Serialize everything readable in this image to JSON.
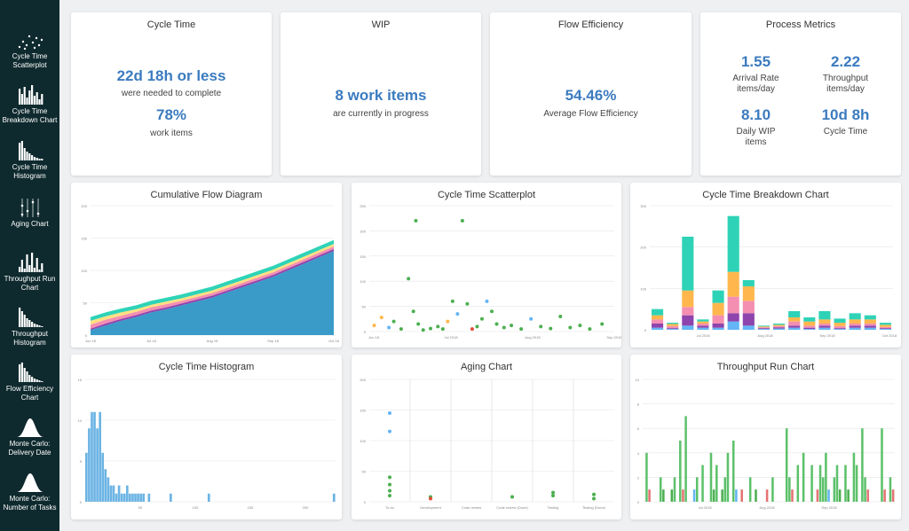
{
  "sidebar": {
    "items": [
      {
        "label": "Cycle Time\nScatterplot",
        "icon": "scatterplot-icon"
      },
      {
        "label": "Cycle Time\nBreakdown Chart",
        "icon": "breakdown-chart-icon"
      },
      {
        "label": "Cycle Time\nHistogram",
        "icon": "histogram-icon"
      },
      {
        "label": "Aging Chart",
        "icon": "aging-chart-icon"
      },
      {
        "label": "Throughput Run\nChart",
        "icon": "run-chart-icon"
      },
      {
        "label": "Throughput\nHistogram",
        "icon": "throughput-histogram-icon"
      },
      {
        "label": "Flow Efficiency\nChart",
        "icon": "flow-efficiency-icon"
      },
      {
        "label": "Monte Carlo:\nDelivery Date",
        "icon": "bell-curve-icon"
      },
      {
        "label": "Monte Carlo:\nNumber of Tasks",
        "icon": "bell-curve-icon"
      }
    ]
  },
  "cycle_time": {
    "title": "Cycle Time",
    "value": "22d 18h or less",
    "desc": "were needed to complete",
    "percent": "78%",
    "unit": "work items"
  },
  "wip": {
    "title": "WIP",
    "value": "8 work items",
    "desc": "are currently in progress"
  },
  "flow_efficiency": {
    "title": "Flow Efficiency",
    "value": "54.46%",
    "desc": "Average Flow Efficiency"
  },
  "process_metrics": {
    "title": "Process Metrics",
    "arrival_rate": {
      "value": "1.55",
      "label": "Arrival Rate\nitems/day"
    },
    "throughput": {
      "value": "2.22",
      "label": "Throughput\nitems/day"
    },
    "daily_wip": {
      "value": "8.10",
      "label": "Daily WIP\nitems"
    },
    "cycle_time": {
      "value": "10d 8h",
      "label": "Cycle Time"
    }
  },
  "panels": {
    "cfd": "Cumulative Flow Diagram",
    "scatter": "Cycle Time Scatterplot",
    "breakdown": "Cycle Time Breakdown Chart",
    "histogram": "Cycle Time Histogram",
    "aging": "Aging Chart",
    "runchart": "Throughput Run Chart"
  },
  "colors": {
    "blue": "#3b7bbf",
    "teal": "#2ed3b7",
    "orange": "#ffb74d",
    "pink": "#f48fb1",
    "purple": "#8e44ad",
    "lightblue": "#64b5f6",
    "green": "#4caf50",
    "red": "#e74c3c",
    "cfd_blue": "#3a9bc9"
  },
  "chart_data": [
    {
      "type": "area",
      "title": "Cumulative Flow Diagram",
      "x_ticks": [
        "Jun 18",
        "Jul 18",
        "Aug 18",
        "Sep 18",
        "Oct 18"
      ],
      "y_ticks": [
        "0",
        "50",
        "100",
        "150",
        "200"
      ],
      "ylim": [
        0,
        200
      ],
      "x": [
        0,
        1,
        2,
        3,
        4,
        5,
        6,
        7,
        8,
        9,
        10,
        11,
        12,
        13,
        14,
        15,
        16
      ],
      "series": [
        {
          "name": "",
          "color": "#3a9bc9",
          "values": [
            8,
            15,
            22,
            28,
            35,
            40,
            46,
            52,
            58,
            66,
            74,
            82,
            90,
            100,
            110,
            120,
            130
          ]
        },
        {
          "name": "",
          "color": "#8e44ad",
          "values": [
            2,
            3,
            3,
            3,
            3,
            3,
            3,
            3,
            3,
            3,
            3,
            3,
            3,
            3,
            3,
            3,
            3
          ]
        },
        {
          "name": "",
          "color": "#f48fb1",
          "values": [
            6,
            6,
            5,
            5,
            5,
            5,
            4,
            4,
            4,
            4,
            4,
            4,
            4,
            4,
            4,
            4,
            4
          ]
        },
        {
          "name": "",
          "color": "#ffe082",
          "values": [
            6,
            5,
            5,
            4,
            4,
            4,
            4,
            4,
            4,
            4,
            4,
            4,
            4,
            4,
            4,
            4,
            4
          ]
        },
        {
          "name": "",
          "color": "#2ed3b7",
          "values": [
            6,
            6,
            6,
            6,
            6,
            6,
            6,
            6,
            6,
            6,
            6,
            6,
            6,
            6,
            6,
            6,
            6
          ]
        }
      ]
    },
    {
      "type": "scatter",
      "title": "Cycle Time Scatterplot",
      "x_ticks": [
        "Jun 18",
        "Jul 2018",
        "Aug 2018",
        "Sep 2018"
      ],
      "y_ticks": [
        "0",
        "50",
        "100",
        "150",
        "200",
        "250"
      ],
      "ylim": [
        0,
        250
      ],
      "points": [
        {
          "x": 2,
          "y": 12,
          "c": "#ffb74d"
        },
        {
          "x": 5,
          "y": 28,
          "c": "#ffb74d"
        },
        {
          "x": 8,
          "y": 8,
          "c": "#64b5f6"
        },
        {
          "x": 10,
          "y": 20,
          "c": "#4caf50"
        },
        {
          "x": 13,
          "y": 5,
          "c": "#4caf50"
        },
        {
          "x": 16,
          "y": 105,
          "c": "#4caf50"
        },
        {
          "x": 18,
          "y": 40,
          "c": "#4caf50"
        },
        {
          "x": 19,
          "y": 220,
          "c": "#4caf50"
        },
        {
          "x": 20,
          "y": 15,
          "c": "#4caf50"
        },
        {
          "x": 22,
          "y": 3,
          "c": "#4caf50"
        },
        {
          "x": 25,
          "y": 6,
          "c": "#4caf50"
        },
        {
          "x": 28,
          "y": 10,
          "c": "#4caf50"
        },
        {
          "x": 30,
          "y": 5,
          "c": "#4caf50"
        },
        {
          "x": 32,
          "y": 20,
          "c": "#ffb74d"
        },
        {
          "x": 34,
          "y": 60,
          "c": "#4caf50"
        },
        {
          "x": 36,
          "y": 35,
          "c": "#64b5f6"
        },
        {
          "x": 38,
          "y": 220,
          "c": "#4caf50"
        },
        {
          "x": 40,
          "y": 55,
          "c": "#4caf50"
        },
        {
          "x": 42,
          "y": 5,
          "c": "#e74c3c"
        },
        {
          "x": 44,
          "y": 10,
          "c": "#4caf50"
        },
        {
          "x": 46,
          "y": 25,
          "c": "#4caf50"
        },
        {
          "x": 48,
          "y": 60,
          "c": "#64b5f6"
        },
        {
          "x": 50,
          "y": 40,
          "c": "#4caf50"
        },
        {
          "x": 52,
          "y": 15,
          "c": "#4caf50"
        },
        {
          "x": 55,
          "y": 8,
          "c": "#4caf50"
        },
        {
          "x": 58,
          "y": 12,
          "c": "#4caf50"
        },
        {
          "x": 62,
          "y": 5,
          "c": "#4caf50"
        },
        {
          "x": 66,
          "y": 25,
          "c": "#64b5f6"
        },
        {
          "x": 70,
          "y": 10,
          "c": "#4caf50"
        },
        {
          "x": 74,
          "y": 6,
          "c": "#4caf50"
        },
        {
          "x": 78,
          "y": 30,
          "c": "#4caf50"
        },
        {
          "x": 82,
          "y": 8,
          "c": "#4caf50"
        },
        {
          "x": 86,
          "y": 12,
          "c": "#4caf50"
        },
        {
          "x": 90,
          "y": 5,
          "c": "#4caf50"
        },
        {
          "x": 95,
          "y": 15,
          "c": "#4caf50"
        }
      ]
    },
    {
      "type": "bar",
      "title": "Cycle Time Breakdown Chart",
      "y_ticks": [
        "0",
        "100",
        "200",
        "300"
      ],
      "x_ticks": [
        "Jul 2018",
        "Aug 2018",
        "Sep 2018",
        "Oct 2018"
      ],
      "ylim": [
        0,
        300
      ],
      "stack_colors": [
        "#64b5f6",
        "#8e44ad",
        "#f48fb1",
        "#ffb74d",
        "#2ed3b7"
      ],
      "bars": [
        [
          5,
          10,
          10,
          10,
          15
        ],
        [
          2,
          2,
          5,
          5,
          3
        ],
        [
          10,
          25,
          20,
          40,
          130
        ],
        [
          5,
          5,
          5,
          5,
          5
        ],
        [
          5,
          10,
          20,
          30,
          30
        ],
        [
          20,
          20,
          40,
          60,
          135
        ],
        [
          10,
          30,
          30,
          35,
          15
        ],
        [
          2,
          2,
          2,
          2,
          2
        ],
        [
          3,
          3,
          3,
          3,
          3
        ],
        [
          5,
          5,
          10,
          10,
          15
        ],
        [
          2,
          3,
          5,
          10,
          10
        ],
        [
          5,
          5,
          5,
          10,
          20
        ],
        [
          2,
          2,
          5,
          8,
          10
        ],
        [
          5,
          5,
          5,
          10,
          15
        ],
        [
          5,
          5,
          5,
          10,
          10
        ],
        [
          2,
          2,
          3,
          5,
          5
        ]
      ]
    },
    {
      "type": "bar",
      "title": "Cycle Time Histogram",
      "y_ticks": [
        "0",
        "5",
        "10",
        "15"
      ],
      "x_ticks": [
        "50",
        "100",
        "150",
        "200"
      ],
      "ylim": [
        0,
        15
      ],
      "values": [
        6,
        9,
        11,
        11,
        9,
        11,
        6,
        4,
        3,
        2,
        2,
        1,
        2,
        1,
        1,
        2,
        1,
        1,
        1,
        1,
        1,
        1,
        0,
        1,
        0,
        0,
        0,
        0,
        0,
        0,
        0,
        1,
        0,
        0,
        0,
        0,
        0,
        0,
        0,
        0,
        0,
        0,
        0,
        0,
        0,
        1,
        0,
        0,
        0,
        0,
        0,
        0,
        0,
        0,
        0,
        0,
        0,
        0,
        0,
        0,
        0,
        0,
        0,
        0,
        0,
        0,
        0,
        0,
        0,
        0,
        0,
        0,
        0,
        0,
        0,
        0,
        0,
        0,
        0,
        0,
        0,
        0,
        0,
        0,
        0,
        0,
        0,
        0,
        0,
        0,
        0,
        1
      ]
    },
    {
      "type": "scatter",
      "title": "Aging Chart",
      "categories": [
        "To do",
        "Development",
        "Code review",
        "Code review (Done)",
        "Testing",
        "Testing (Done)"
      ],
      "y_ticks": [
        "0",
        "50",
        "100",
        "150",
        "200"
      ],
      "ylim": [
        0,
        200
      ],
      "points": [
        {
          "cat": 0,
          "y": 145,
          "c": "#64b5f6"
        },
        {
          "cat": 0,
          "y": 115,
          "c": "#64b5f6"
        },
        {
          "cat": 0,
          "y": 40,
          "c": "#4caf50"
        },
        {
          "cat": 0,
          "y": 28,
          "c": "#4caf50"
        },
        {
          "cat": 0,
          "y": 18,
          "c": "#4caf50"
        },
        {
          "cat": 0,
          "y": 10,
          "c": "#4caf50"
        },
        {
          "cat": 1,
          "y": 8,
          "c": "#4caf50"
        },
        {
          "cat": 1,
          "y": 5,
          "c": "#e74c3c"
        },
        {
          "cat": 3,
          "y": 8,
          "c": "#4caf50"
        },
        {
          "cat": 4,
          "y": 15,
          "c": "#4caf50"
        },
        {
          "cat": 4,
          "y": 10,
          "c": "#4caf50"
        },
        {
          "cat": 5,
          "y": 12,
          "c": "#4caf50"
        },
        {
          "cat": 5,
          "y": 5,
          "c": "#4caf50"
        }
      ]
    },
    {
      "type": "bar",
      "title": "Throughput Run Chart",
      "y_ticks": [
        "0",
        "2",
        "4",
        "6",
        "8",
        "10"
      ],
      "x_ticks": [
        "Jul 2018",
        "Aug 2018",
        "Sep 2018"
      ],
      "ylim": [
        0,
        10
      ],
      "values": [
        0,
        4,
        1,
        0,
        0,
        0,
        2,
        1,
        0,
        0,
        1,
        2,
        0,
        5,
        1,
        7,
        0,
        0,
        1,
        2,
        0,
        3,
        0,
        0,
        4,
        1,
        3,
        0,
        1,
        2,
        4,
        0,
        5,
        1,
        0,
        1,
        0,
        0,
        2,
        0,
        1,
        0,
        0,
        0,
        1,
        0,
        2,
        0,
        0,
        0,
        0,
        6,
        2,
        1,
        0,
        3,
        0,
        4,
        0,
        0,
        3,
        0,
        1,
        3,
        2,
        4,
        1,
        0,
        2,
        3,
        1,
        0,
        3,
        1,
        0,
        4,
        3,
        0,
        6,
        2,
        1,
        0,
        0,
        0,
        0,
        6,
        1,
        0,
        2,
        1
      ]
    }
  ]
}
